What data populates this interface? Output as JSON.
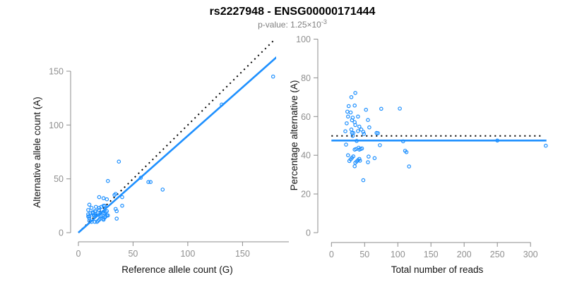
{
  "title": "rs2227948 - ENSG00000171444",
  "subtitle": {
    "prefix": "p-value: 1.25×10",
    "exponent": "-3"
  },
  "colors": {
    "accent": "#1E90FF",
    "identity_line": "#000000",
    "axis": "#8c8c8c",
    "tick_label": "#8f8f8f",
    "title": "#000000",
    "subtitle": "#7f7f7f",
    "background": "#ffffff"
  },
  "chart_data": [
    {
      "type": "scatter",
      "name": "allele-counts",
      "xlabel": "Reference allele count (G)",
      "ylabel": "Alternative allele count (A)",
      "xticks": [
        0,
        50,
        100,
        150
      ],
      "yticks": [
        0,
        50,
        100,
        150
      ],
      "xlim": [
        0,
        185
      ],
      "ylim": [
        0,
        180
      ],
      "grid": false,
      "lines": [
        {
          "name": "identity-1to1",
          "style": "dotted",
          "color": "#000000",
          "slope": 1,
          "intercept": 0,
          "x_range": [
            0,
            185
          ]
        },
        {
          "name": "fitted-ratio",
          "style": "solid",
          "color": "#1E90FF",
          "slope": 0.9,
          "intercept": 0,
          "x_range": [
            0,
            185
          ]
        }
      ],
      "points": [
        [
          10,
          26
        ],
        [
          12,
          23
        ],
        [
          11,
          18
        ],
        [
          9,
          15
        ],
        [
          19,
          33
        ],
        [
          27,
          48
        ],
        [
          37,
          66
        ],
        [
          10,
          15
        ],
        [
          13,
          19
        ],
        [
          13,
          18
        ],
        [
          16,
          24
        ],
        [
          23,
          32
        ],
        [
          10,
          13
        ],
        [
          15,
          20
        ],
        [
          16,
          20
        ],
        [
          14,
          16
        ],
        [
          19,
          23
        ],
        [
          21,
          24
        ],
        [
          19,
          21
        ],
        [
          23,
          25
        ],
        [
          26,
          31
        ],
        [
          10,
          11
        ],
        [
          15,
          16
        ],
        [
          16,
          16
        ],
        [
          16,
          17
        ],
        [
          24,
          25
        ],
        [
          33,
          35
        ],
        [
          34,
          36
        ],
        [
          20,
          18
        ],
        [
          131,
          119
        ],
        [
          12,
          10
        ],
        [
          40,
          33
        ],
        [
          57,
          51
        ],
        [
          178,
          145
        ],
        [
          20,
          15
        ],
        [
          21,
          16
        ],
        [
          23,
          18
        ],
        [
          25,
          19
        ],
        [
          26,
          20
        ],
        [
          24,
          18
        ],
        [
          64,
          47
        ],
        [
          66,
          47
        ],
        [
          15,
          10
        ],
        [
          19,
          12
        ],
        [
          20,
          13
        ],
        [
          34,
          22
        ],
        [
          40,
          25
        ],
        [
          17,
          10
        ],
        [
          18,
          11
        ],
        [
          23,
          13
        ],
        [
          24,
          14
        ],
        [
          25,
          15
        ],
        [
          26,
          16
        ],
        [
          27,
          16
        ],
        [
          23,
          12
        ],
        [
          35,
          20
        ],
        [
          77,
          40
        ],
        [
          35,
          13
        ],
        [
          9,
          21
        ],
        [
          9,
          17
        ]
      ]
    },
    {
      "type": "scatter",
      "name": "percentage-vs-coverage",
      "xlabel": "Total number of reads",
      "ylabel": "Percentage alternative (A)",
      "xticks": [
        0,
        50,
        100,
        150,
        200,
        250,
        300
      ],
      "yticks": [
        0,
        20,
        40,
        60,
        80,
        100
      ],
      "xlim": [
        0,
        325
      ],
      "ylim": [
        0,
        100
      ],
      "grid": false,
      "lines": [
        {
          "name": "expected-50pct",
          "style": "dotted",
          "color": "#000000",
          "value": 50,
          "x_range": [
            0,
            316
          ]
        },
        {
          "name": "observed-mean",
          "style": "solid",
          "color": "#1E90FF",
          "value": 47.6,
          "x_range": [
            0,
            324
          ]
        }
      ],
      "points": [
        [
          36,
          72.2
        ],
        [
          35,
          65.7
        ],
        [
          29,
          62.1
        ],
        [
          24,
          62.5
        ],
        [
          52,
          63.5
        ],
        [
          75,
          64.0
        ],
        [
          103,
          64.1
        ],
        [
          25,
          60.0
        ],
        [
          32,
          59.4
        ],
        [
          31,
          58.1
        ],
        [
          40,
          60.0
        ],
        [
          55,
          58.2
        ],
        [
          23,
          56.5
        ],
        [
          35,
          57.1
        ],
        [
          36,
          55.6
        ],
        [
          30,
          53.3
        ],
        [
          42,
          54.8
        ],
        [
          45,
          53.3
        ],
        [
          40,
          52.5
        ],
        [
          48,
          52.1
        ],
        [
          57,
          54.4
        ],
        [
          21,
          52.4
        ],
        [
          31,
          51.6
        ],
        [
          32,
          50.0
        ],
        [
          33,
          51.5
        ],
        [
          49,
          51.0
        ],
        [
          68,
          51.5
        ],
        [
          70,
          51.4
        ],
        [
          38,
          47.4
        ],
        [
          250,
          47.6
        ],
        [
          22,
          45.5
        ],
        [
          73,
          45.2
        ],
        [
          108,
          47.2
        ],
        [
          323,
          44.9
        ],
        [
          35,
          42.9
        ],
        [
          37,
          43.2
        ],
        [
          41,
          43.9
        ],
        [
          44,
          43.2
        ],
        [
          46,
          43.5
        ],
        [
          42,
          42.9
        ],
        [
          111,
          42.3
        ],
        [
          113,
          41.6
        ],
        [
          25,
          40.0
        ],
        [
          31,
          38.7
        ],
        [
          33,
          39.4
        ],
        [
          56,
          39.3
        ],
        [
          65,
          38.5
        ],
        [
          27,
          37.0
        ],
        [
          29,
          37.9
        ],
        [
          36,
          36.1
        ],
        [
          38,
          36.8
        ],
        [
          40,
          37.5
        ],
        [
          42,
          38.1
        ],
        [
          43,
          37.2
        ],
        [
          35,
          34.3
        ],
        [
          55,
          36.4
        ],
        [
          117,
          34.2
        ],
        [
          48,
          27.1
        ],
        [
          30,
          70.0
        ],
        [
          26,
          65.4
        ]
      ]
    }
  ]
}
